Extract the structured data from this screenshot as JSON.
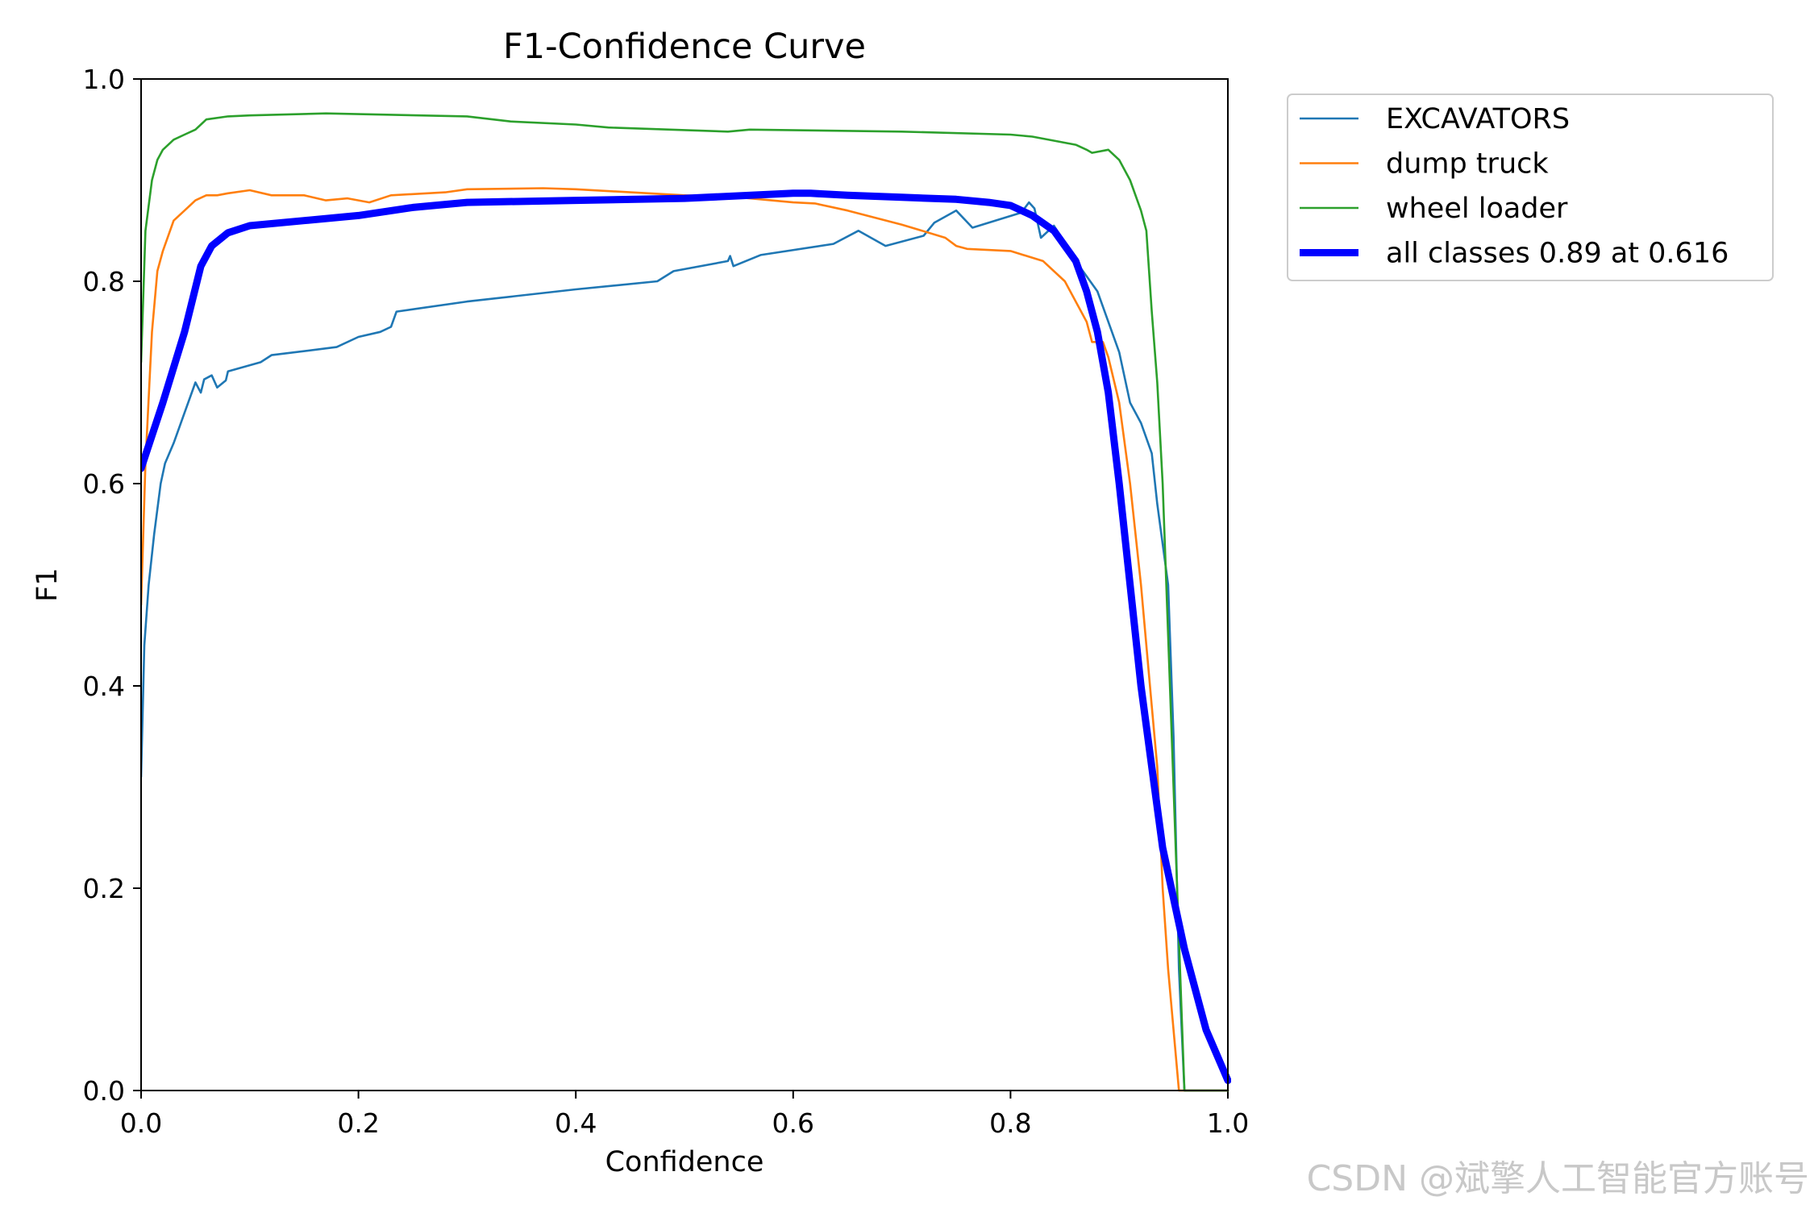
{
  "watermark": "CSDN @斌擎人工智能官方账号",
  "chart_data": {
    "type": "line",
    "title": "F1-Confidence Curve",
    "xlabel": "Confidence",
    "ylabel": "F1",
    "xlim": [
      0.0,
      1.0
    ],
    "ylim": [
      0.0,
      1.0
    ],
    "xticks": [
      "0.0",
      "0.2",
      "0.4",
      "0.6",
      "0.8",
      "1.0"
    ],
    "yticks": [
      "0.0",
      "0.2",
      "0.4",
      "0.6",
      "0.8",
      "1.0"
    ],
    "grid": false,
    "legend_position": "outside-top-right",
    "series": [
      {
        "name": "EXCAVATORS",
        "color": "#1f77b4",
        "thick": false,
        "points": [
          [
            0.0,
            0.31
          ],
          [
            0.003,
            0.44
          ],
          [
            0.007,
            0.5
          ],
          [
            0.012,
            0.55
          ],
          [
            0.018,
            0.6
          ],
          [
            0.022,
            0.62
          ],
          [
            0.03,
            0.64
          ],
          [
            0.04,
            0.67
          ],
          [
            0.05,
            0.7
          ],
          [
            0.055,
            0.69
          ],
          [
            0.058,
            0.703
          ],
          [
            0.065,
            0.707
          ],
          [
            0.07,
            0.695
          ],
          [
            0.078,
            0.702
          ],
          [
            0.08,
            0.711
          ],
          [
            0.11,
            0.72
          ],
          [
            0.12,
            0.727
          ],
          [
            0.18,
            0.735
          ],
          [
            0.2,
            0.745
          ],
          [
            0.22,
            0.75
          ],
          [
            0.23,
            0.755
          ],
          [
            0.235,
            0.77
          ],
          [
            0.3,
            0.78
          ],
          [
            0.4,
            0.792
          ],
          [
            0.475,
            0.8
          ],
          [
            0.49,
            0.81
          ],
          [
            0.54,
            0.82
          ],
          [
            0.542,
            0.825
          ],
          [
            0.545,
            0.815
          ],
          [
            0.57,
            0.826
          ],
          [
            0.637,
            0.837
          ],
          [
            0.66,
            0.85
          ],
          [
            0.685,
            0.835
          ],
          [
            0.72,
            0.845
          ],
          [
            0.73,
            0.858
          ],
          [
            0.75,
            0.87
          ],
          [
            0.765,
            0.853
          ],
          [
            0.81,
            0.868
          ],
          [
            0.817,
            0.878
          ],
          [
            0.822,
            0.872
          ],
          [
            0.828,
            0.843
          ],
          [
            0.84,
            0.855
          ],
          [
            0.86,
            0.82
          ],
          [
            0.88,
            0.79
          ],
          [
            0.9,
            0.73
          ],
          [
            0.91,
            0.68
          ],
          [
            0.92,
            0.66
          ],
          [
            0.93,
            0.63
          ],
          [
            0.935,
            0.58
          ],
          [
            0.945,
            0.5
          ],
          [
            0.95,
            0.35
          ],
          [
            0.955,
            0.12
          ],
          [
            0.96,
            0.0
          ],
          [
            1.0,
            0.0
          ]
        ]
      },
      {
        "name": "dump truck",
        "color": "#ff7f0e",
        "thick": false,
        "points": [
          [
            0.0,
            0.48
          ],
          [
            0.004,
            0.62
          ],
          [
            0.01,
            0.75
          ],
          [
            0.015,
            0.81
          ],
          [
            0.02,
            0.83
          ],
          [
            0.03,
            0.86
          ],
          [
            0.04,
            0.87
          ],
          [
            0.05,
            0.88
          ],
          [
            0.06,
            0.885
          ],
          [
            0.07,
            0.885
          ],
          [
            0.08,
            0.887
          ],
          [
            0.1,
            0.89
          ],
          [
            0.12,
            0.885
          ],
          [
            0.15,
            0.885
          ],
          [
            0.17,
            0.88
          ],
          [
            0.19,
            0.882
          ],
          [
            0.21,
            0.878
          ],
          [
            0.23,
            0.885
          ],
          [
            0.28,
            0.888
          ],
          [
            0.3,
            0.891
          ],
          [
            0.37,
            0.892
          ],
          [
            0.4,
            0.891
          ],
          [
            0.5,
            0.885
          ],
          [
            0.55,
            0.883
          ],
          [
            0.6,
            0.878
          ],
          [
            0.62,
            0.877
          ],
          [
            0.65,
            0.87
          ],
          [
            0.7,
            0.856
          ],
          [
            0.74,
            0.843
          ],
          [
            0.75,
            0.835
          ],
          [
            0.76,
            0.832
          ],
          [
            0.8,
            0.83
          ],
          [
            0.83,
            0.82
          ],
          [
            0.85,
            0.8
          ],
          [
            0.86,
            0.78
          ],
          [
            0.87,
            0.76
          ],
          [
            0.875,
            0.74
          ],
          [
            0.885,
            0.74
          ],
          [
            0.89,
            0.725
          ],
          [
            0.9,
            0.68
          ],
          [
            0.91,
            0.6
          ],
          [
            0.92,
            0.5
          ],
          [
            0.93,
            0.38
          ],
          [
            0.935,
            0.32
          ],
          [
            0.94,
            0.2
          ],
          [
            0.945,
            0.12
          ],
          [
            0.95,
            0.06
          ],
          [
            0.955,
            0.0
          ],
          [
            1.0,
            0.0
          ]
        ]
      },
      {
        "name": "wheel loader",
        "color": "#2ca02c",
        "thick": false,
        "points": [
          [
            0.0,
            0.72
          ],
          [
            0.004,
            0.85
          ],
          [
            0.01,
            0.9
          ],
          [
            0.015,
            0.92
          ],
          [
            0.02,
            0.93
          ],
          [
            0.03,
            0.94
          ],
          [
            0.04,
            0.945
          ],
          [
            0.05,
            0.95
          ],
          [
            0.06,
            0.96
          ],
          [
            0.08,
            0.963
          ],
          [
            0.1,
            0.964
          ],
          [
            0.17,
            0.966
          ],
          [
            0.3,
            0.963
          ],
          [
            0.34,
            0.958
          ],
          [
            0.4,
            0.955
          ],
          [
            0.43,
            0.952
          ],
          [
            0.54,
            0.948
          ],
          [
            0.56,
            0.95
          ],
          [
            0.7,
            0.948
          ],
          [
            0.8,
            0.945
          ],
          [
            0.82,
            0.943
          ],
          [
            0.86,
            0.935
          ],
          [
            0.87,
            0.93
          ],
          [
            0.875,
            0.927
          ],
          [
            0.89,
            0.93
          ],
          [
            0.9,
            0.92
          ],
          [
            0.91,
            0.9
          ],
          [
            0.92,
            0.87
          ],
          [
            0.925,
            0.85
          ],
          [
            0.93,
            0.77
          ],
          [
            0.935,
            0.7
          ],
          [
            0.94,
            0.6
          ],
          [
            0.945,
            0.45
          ],
          [
            0.95,
            0.3
          ],
          [
            0.955,
            0.15
          ],
          [
            0.96,
            0.0
          ],
          [
            1.0,
            0.0
          ]
        ]
      },
      {
        "name": "all classes 0.89 at 0.616",
        "color": "#0000ff",
        "thick": true,
        "points": [
          [
            0.0,
            0.615
          ],
          [
            0.02,
            0.68
          ],
          [
            0.04,
            0.75
          ],
          [
            0.055,
            0.815
          ],
          [
            0.065,
            0.835
          ],
          [
            0.08,
            0.848
          ],
          [
            0.1,
            0.855
          ],
          [
            0.15,
            0.86
          ],
          [
            0.2,
            0.865
          ],
          [
            0.25,
            0.873
          ],
          [
            0.3,
            0.878
          ],
          [
            0.4,
            0.88
          ],
          [
            0.5,
            0.882
          ],
          [
            0.6,
            0.887
          ],
          [
            0.616,
            0.887
          ],
          [
            0.65,
            0.885
          ],
          [
            0.7,
            0.883
          ],
          [
            0.75,
            0.881
          ],
          [
            0.78,
            0.878
          ],
          [
            0.8,
            0.875
          ],
          [
            0.82,
            0.865
          ],
          [
            0.84,
            0.85
          ],
          [
            0.86,
            0.82
          ],
          [
            0.87,
            0.79
          ],
          [
            0.88,
            0.75
          ],
          [
            0.89,
            0.69
          ],
          [
            0.9,
            0.6
          ],
          [
            0.91,
            0.5
          ],
          [
            0.92,
            0.4
          ],
          [
            0.93,
            0.32
          ],
          [
            0.94,
            0.24
          ],
          [
            0.96,
            0.14
          ],
          [
            0.98,
            0.06
          ],
          [
            1.0,
            0.01
          ]
        ]
      }
    ]
  }
}
